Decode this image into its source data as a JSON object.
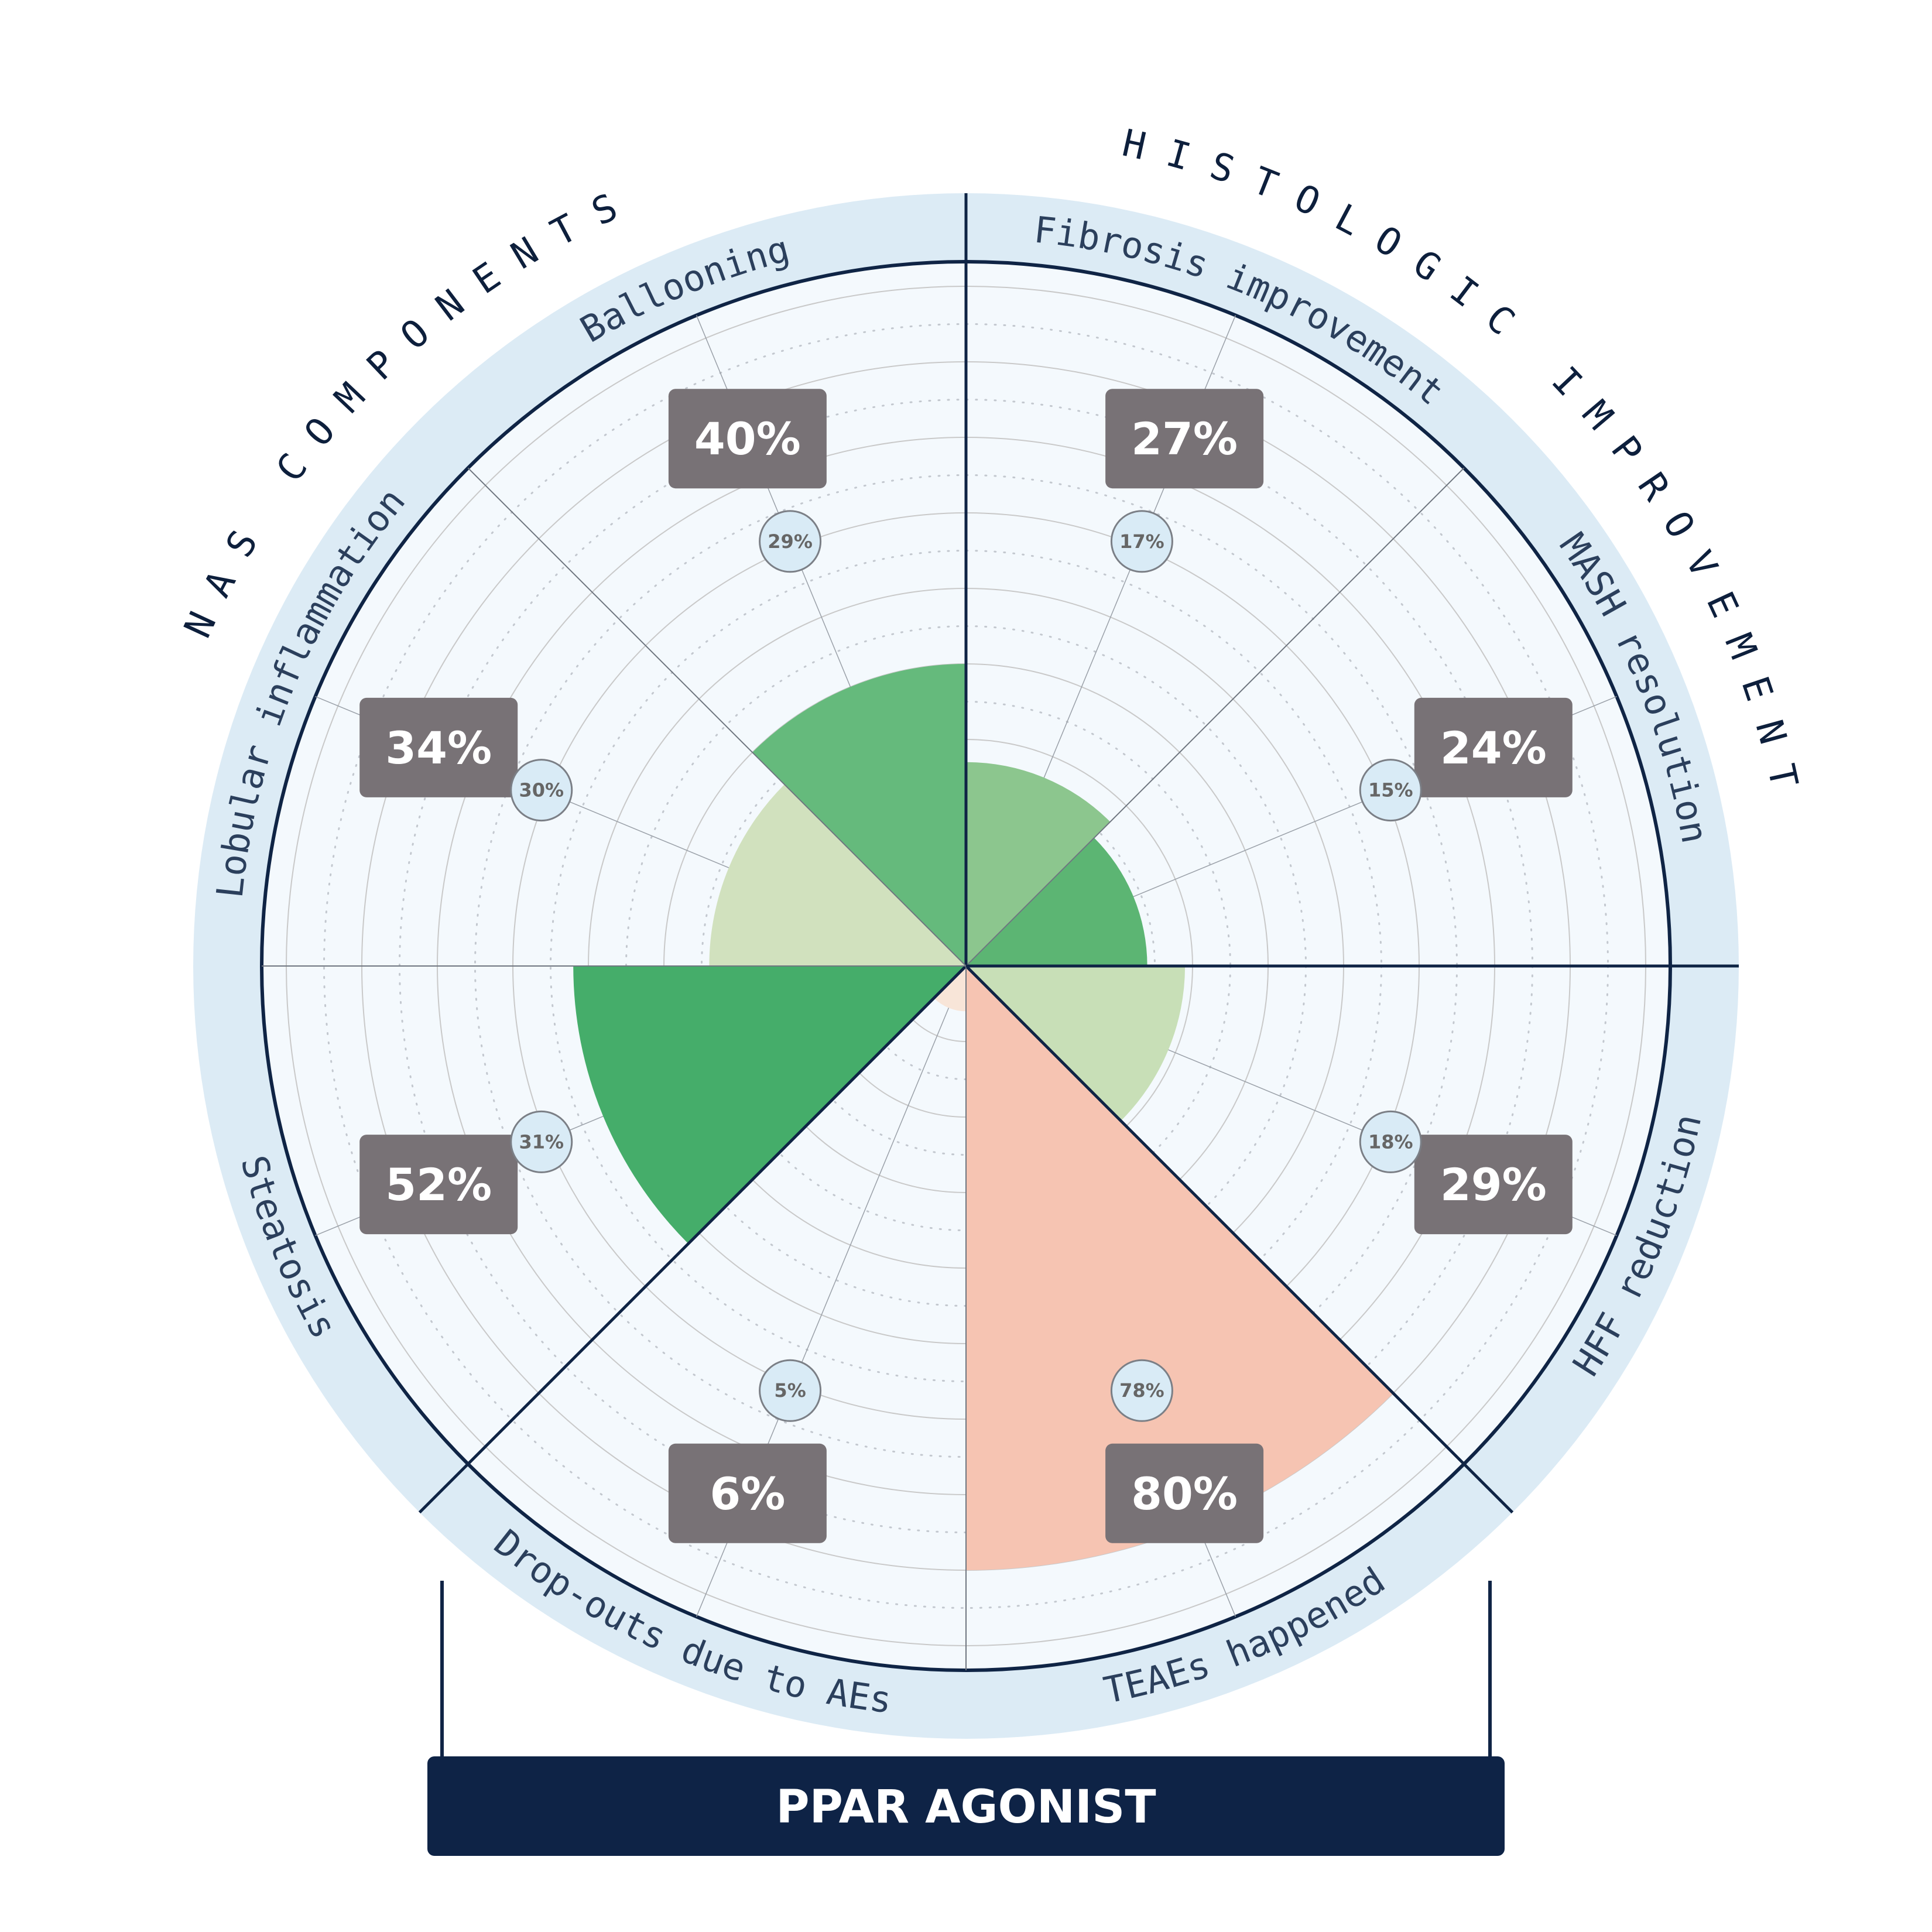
{
  "title": "PPAR AGONIST",
  "groups": [
    {
      "label": "NAS COMPONENTS"
    },
    {
      "label": "HISTOLOGIC IMPROVEMENT"
    }
  ],
  "chart_data": {
    "type": "polar-area",
    "rmax": 100,
    "categories": [
      "Fibrosis improvement",
      "MASH resolution",
      "HFF reduction",
      "TEAEs happened",
      "Drop-outs due to AEs",
      "Steatosis",
      "Lobular inflammation",
      "Ballooning"
    ],
    "values": [
      27,
      24,
      29,
      80,
      6,
      52,
      34,
      40
    ],
    "reference_values": [
      17,
      15,
      18,
      78,
      5,
      31,
      30,
      29
    ],
    "value_labels": [
      "27%",
      "24%",
      "29%",
      "80%",
      "6%",
      "52%",
      "34%",
      "40%"
    ],
    "reference_labels": [
      "17%",
      "15%",
      "18%",
      "78%",
      "5%",
      "31%",
      "30%",
      "29%"
    ],
    "colors": [
      "#8cc68e",
      "#5cb573",
      "#c8dfb7",
      "#f6c4b2",
      "#f8e5d8",
      "#45ad6a",
      "#d1e1be",
      "#65ba7c"
    ],
    "grid": true
  }
}
